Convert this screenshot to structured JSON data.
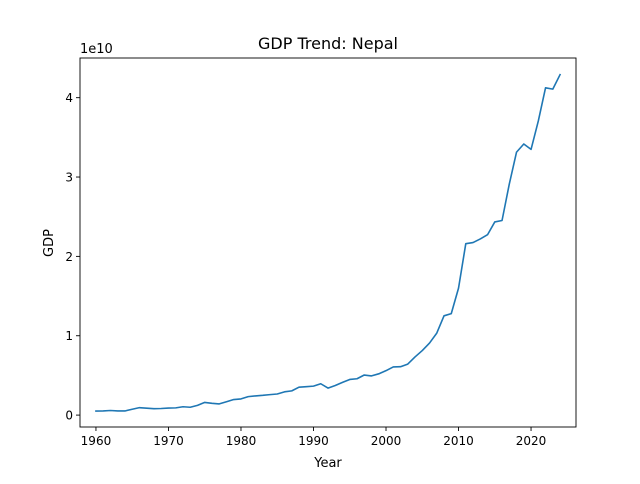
{
  "chart_data": {
    "type": "line",
    "title": "GDP Trend: Nepal",
    "xlabel": "Year",
    "ylabel": "GDP",
    "y_offset_label": "1e10",
    "xlim": [
      1957.8,
      2026.2
    ],
    "ylim": [
      -0.15,
      4.5
    ],
    "x_ticks": [
      1960,
      1970,
      1980,
      1990,
      2000,
      2010,
      2020
    ],
    "x_tick_labels": [
      "1960",
      "1970",
      "1980",
      "1990",
      "2000",
      "2010",
      "2020"
    ],
    "y_ticks": [
      0,
      1,
      2,
      3,
      4
    ],
    "y_tick_labels": [
      "0",
      "1",
      "2",
      "3",
      "4"
    ],
    "y_unit_multiplier": 10000000000,
    "grid": false,
    "series": [
      {
        "color": "#1f77b4",
        "x": [
          1960,
          1961,
          1962,
          1963,
          1964,
          1965,
          1966,
          1967,
          1968,
          1969,
          1970,
          1971,
          1972,
          1973,
          1974,
          1975,
          1976,
          1977,
          1978,
          1979,
          1980,
          1981,
          1982,
          1983,
          1984,
          1985,
          1986,
          1987,
          1988,
          1989,
          1990,
          1991,
          1992,
          1993,
          1994,
          1995,
          1996,
          1997,
          1998,
          1999,
          2000,
          2001,
          2002,
          2003,
          2004,
          2005,
          2006,
          2007,
          2008,
          2009,
          2010,
          2011,
          2012,
          2013,
          2014,
          2015,
          2016,
          2017,
          2018,
          2019,
          2020,
          2021,
          2022,
          2023,
          2024
        ],
        "y": [
          0.051,
          0.053,
          0.058,
          0.052,
          0.052,
          0.074,
          0.094,
          0.087,
          0.081,
          0.083,
          0.089,
          0.091,
          0.105,
          0.099,
          0.123,
          0.16,
          0.149,
          0.141,
          0.168,
          0.196,
          0.204,
          0.233,
          0.242,
          0.249,
          0.258,
          0.266,
          0.293,
          0.305,
          0.352,
          0.358,
          0.365,
          0.395,
          0.34,
          0.373,
          0.412,
          0.449,
          0.458,
          0.505,
          0.494,
          0.52,
          0.56,
          0.607,
          0.61,
          0.643,
          0.733,
          0.813,
          0.908,
          1.033,
          1.251,
          1.279,
          1.6,
          2.16,
          2.174,
          2.22,
          2.273,
          2.434,
          2.452,
          2.911,
          3.314,
          3.416,
          3.348,
          3.705,
          4.124,
          4.108,
          4.29
        ]
      }
    ]
  }
}
